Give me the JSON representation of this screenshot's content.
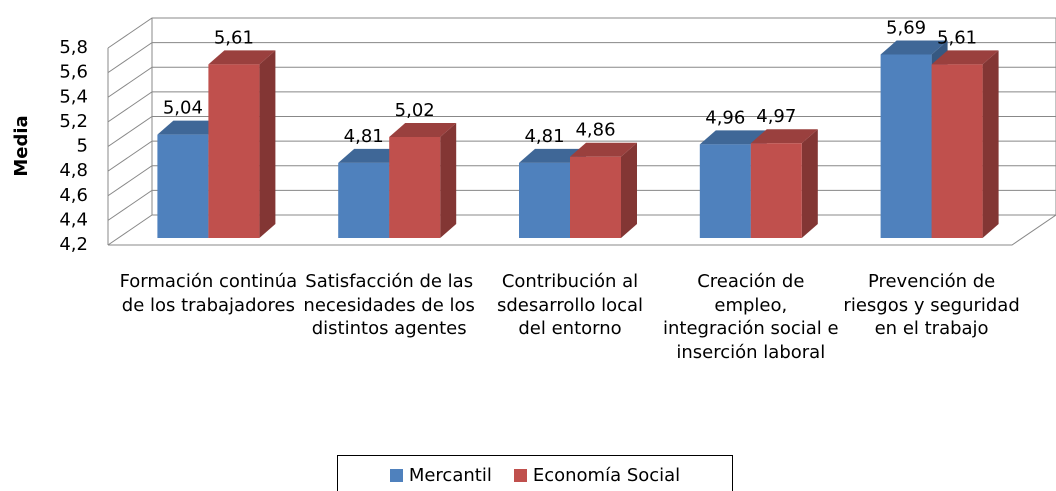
{
  "chart_data": {
    "type": "bar3d",
    "y_label": "Media",
    "categories": [
      "Formación continúa de los trabajadores",
      "Satisfacción de las necesidades de los distintos agentes",
      "Contribución al sdesarrollo local del entorno",
      "Creación de empleo, integración social e inserción laboral",
      "Prevención de riesgos y seguridad en el trabajo"
    ],
    "series": [
      {
        "name": "Mercantil",
        "color": "#4f81bd",
        "values": [
          5.04,
          4.81,
          4.81,
          4.96,
          5.69
        ],
        "value_labels": [
          "5,04",
          "4,81",
          "4,81",
          "4,96",
          "5,69"
        ]
      },
      {
        "name": "Economía Social",
        "color": "#c0504d",
        "values": [
          5.61,
          5.02,
          4.86,
          4.97,
          5.61
        ],
        "value_labels": [
          "5,61",
          "5,02",
          "4,86",
          "4,97",
          "5,61"
        ]
      }
    ],
    "ylim": [
      4.2,
      5.8
    ],
    "yticks": [
      {
        "value": 4.2,
        "label": "4,2"
      },
      {
        "value": 4.4,
        "label": "4,4"
      },
      {
        "value": 4.6,
        "label": "4,6"
      },
      {
        "value": 4.8,
        "label": "4,8"
      },
      5,
      {
        "value": 5.2,
        "label": "5,2"
      },
      {
        "value": 5.4,
        "label": "5,4"
      },
      {
        "value": 5.6,
        "label": "5,6"
      },
      {
        "value": 5.8,
        "label": "5,8"
      }
    ],
    "grid": true,
    "legend": "bottom"
  }
}
